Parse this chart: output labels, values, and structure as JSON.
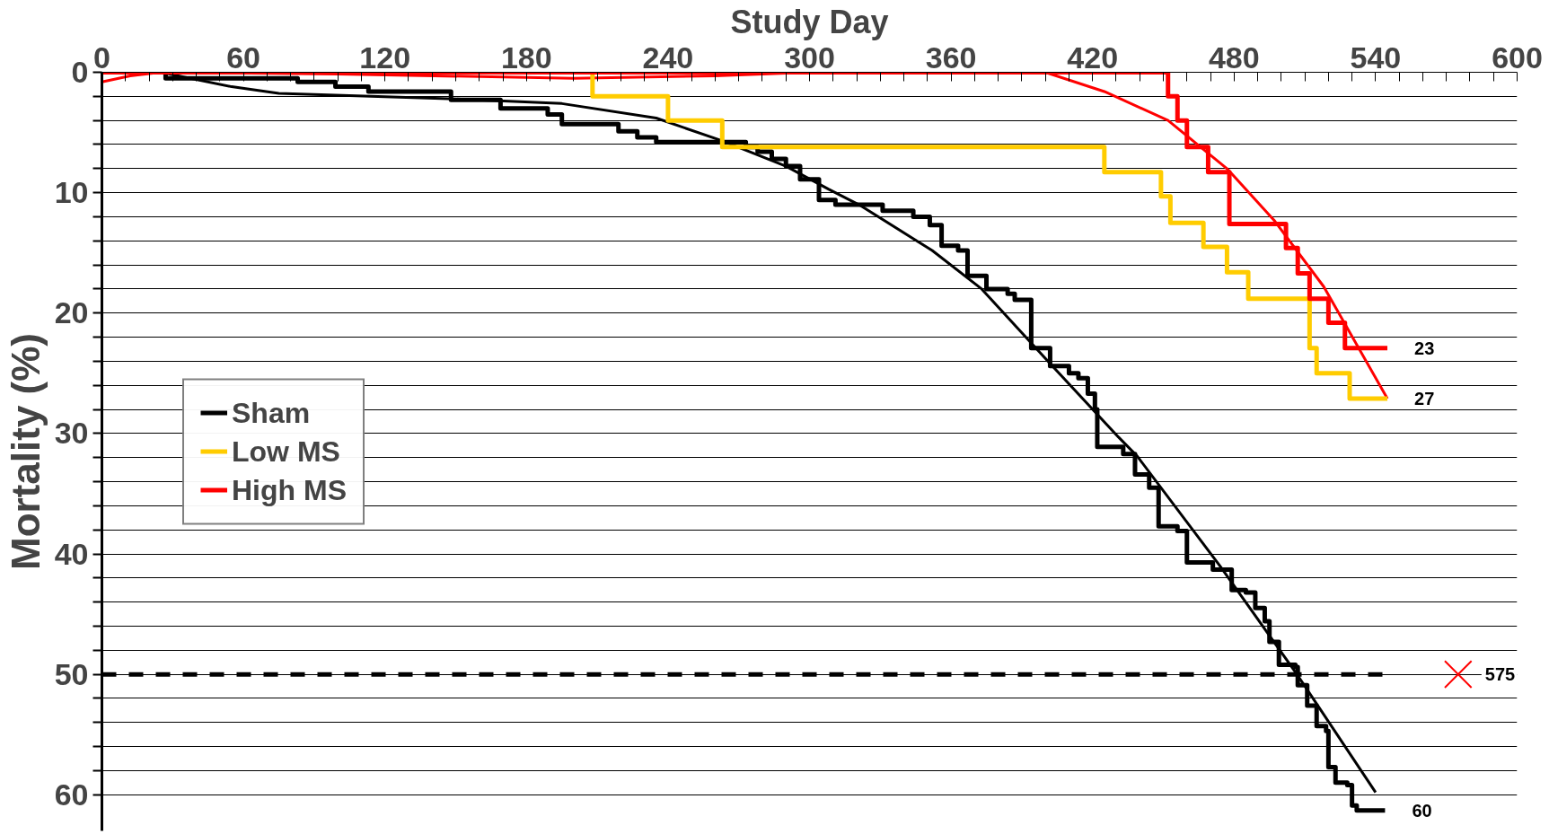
{
  "chart_data": {
    "type": "step",
    "xlabel": "Study Day",
    "ylabel": "Mortality (%)",
    "xlim": [
      0,
      600
    ],
    "xticks": [
      0,
      {
        "value": 10,
        "label": null
      },
      {
        "value": 20,
        "label": null
      },
      {
        "value": 30,
        "label": null
      },
      {
        "value": 40,
        "label": null
      },
      {
        "value": 50,
        "label": null
      },
      60,
      {
        "value": 70,
        "label": null
      },
      {
        "value": 80,
        "label": null
      },
      {
        "value": 90,
        "label": null
      },
      {
        "value": 100,
        "label": null
      },
      {
        "value": 110,
        "label": null
      },
      120,
      {
        "value": 130,
        "label": null
      },
      {
        "value": 140,
        "label": null
      },
      {
        "value": 150,
        "label": null
      },
      {
        "value": 160,
        "label": null
      },
      {
        "value": 170,
        "label": null
      },
      180,
      {
        "value": 190,
        "label": null
      },
      {
        "value": 200,
        "label": null
      },
      {
        "value": 210,
        "label": null
      },
      {
        "value": 220,
        "label": null
      },
      {
        "value": 230,
        "label": null
      },
      240,
      {
        "value": 250,
        "label": null
      },
      {
        "value": 260,
        "label": null
      },
      {
        "value": 270,
        "label": null
      },
      {
        "value": 280,
        "label": null
      },
      {
        "value": 290,
        "label": null
      },
      300,
      {
        "value": 310,
        "label": null
      },
      {
        "value": 320,
        "label": null
      },
      {
        "value": 330,
        "label": null
      },
      {
        "value": 340,
        "label": null
      },
      {
        "value": 350,
        "label": null
      },
      360,
      {
        "value": 370,
        "label": null
      },
      {
        "value": 380,
        "label": null
      },
      {
        "value": 390,
        "label": null
      },
      {
        "value": 400,
        "label": null
      },
      {
        "value": 410,
        "label": null
      },
      420,
      {
        "value": 430,
        "label": null
      },
      {
        "value": 440,
        "label": null
      },
      {
        "value": 450,
        "label": null
      },
      {
        "value": 460,
        "label": null
      },
      {
        "value": 470,
        "label": null
      },
      480,
      {
        "value": 490,
        "label": null
      },
      {
        "value": 500,
        "label": null
      },
      {
        "value": 510,
        "label": null
      },
      {
        "value": 520,
        "label": null
      },
      {
        "value": 530,
        "label": null
      },
      540,
      {
        "value": 550,
        "label": null
      },
      {
        "value": 560,
        "label": null
      },
      {
        "value": 570,
        "label": null
      },
      {
        "value": 580,
        "label": null
      },
      {
        "value": 590,
        "label": null
      },
      600
    ],
    "ylim": [
      63,
      0
    ],
    "yticks": [
      0,
      {
        "value": 2,
        "label": null
      },
      {
        "value": 4,
        "label": null
      },
      {
        "value": 6,
        "label": null
      },
      {
        "value": 8,
        "label": null
      },
      10,
      {
        "value": 12,
        "label": null
      },
      {
        "value": 14,
        "label": null
      },
      {
        "value": 16,
        "label": null
      },
      {
        "value": 18,
        "label": null
      },
      20,
      {
        "value": 22,
        "label": null
      },
      {
        "value": 24,
        "label": null
      },
      {
        "value": 26,
        "label": null
      },
      {
        "value": 28,
        "label": null
      },
      30,
      {
        "value": 32,
        "label": null
      },
      {
        "value": 34,
        "label": null
      },
      {
        "value": 36,
        "label": null
      },
      {
        "value": 38,
        "label": null
      },
      40,
      {
        "value": 42,
        "label": null
      },
      {
        "value": 44,
        "label": null
      },
      {
        "value": 46,
        "label": null
      },
      {
        "value": 48,
        "label": null
      },
      50,
      {
        "value": 52,
        "label": null
      },
      {
        "value": 54,
        "label": null
      },
      {
        "value": 56,
        "label": null
      },
      {
        "value": 58,
        "label": null
      },
      60
    ],
    "grid": "y",
    "legend": "left",
    "series": [
      {
        "name": "Sham",
        "color": "#000000",
        "x": [
          0,
          27,
          83,
          99,
          113,
          148,
          169,
          189,
          195,
          219,
          227,
          235,
          273,
          278,
          284,
          290,
          296,
          304,
          311,
          331,
          344,
          351,
          356,
          363,
          367,
          375,
          384,
          387,
          394,
          402,
          410,
          414,
          418,
          421,
          422,
          433,
          438,
          444,
          448,
          456,
          460,
          471,
          479,
          485,
          489,
          493,
          495,
          499,
          506,
          507,
          511,
          515,
          519,
          520,
          523,
          528,
          530,
          532,
          544
        ],
        "values": [
          0,
          0.5,
          0.8,
          1.2,
          1.6,
          2.3,
          3.0,
          3.5,
          4.3,
          4.9,
          5.4,
          5.8,
          6.2,
          6.6,
          7.2,
          7.8,
          8.9,
          10.6,
          11.0,
          11.5,
          12.0,
          12.7,
          14.4,
          14.8,
          16.9,
          18.0,
          18.4,
          18.9,
          22.9,
          24.4,
          25.0,
          25.4,
          26.7,
          28.0,
          31.1,
          31.7,
          33.4,
          34.5,
          37.7,
          38.1,
          40.7,
          41.3,
          43.0,
          43.2,
          44.5,
          45.6,
          47.3,
          49.2,
          49.4,
          50.9,
          52.6,
          54.3,
          54.7,
          57.7,
          59.0,
          59.2,
          60.9,
          61.3,
          61.3
        ]
      },
      {
        "name": "Low MS",
        "color": "#ffcc00",
        "x": [
          0,
          208,
          240,
          263,
          425,
          449,
          453,
          467,
          477,
          486,
          512,
          515,
          529,
          545
        ],
        "values": [
          0,
          2.0,
          4.0,
          6.2,
          8.3,
          10.3,
          12.5,
          14.5,
          16.6,
          18.8,
          22.9,
          25.0,
          27.1,
          27.1
        ]
      },
      {
        "name": "High MS",
        "color": "#ff0000",
        "x": [
          0,
          452,
          456,
          460,
          469,
          478,
          502,
          507,
          512,
          520,
          527,
          545
        ],
        "values": [
          0,
          2.0,
          4.0,
          6.2,
          8.3,
          12.6,
          14.6,
          16.7,
          18.8,
          20.8,
          22.9,
          22.9
        ]
      },
      {
        "color": "#000000",
        "type": "line",
        "x": [
          25,
          55,
          75,
          147,
          195,
          235,
          263,
          290,
          308,
          321,
          352,
          373,
          402,
          431,
          439,
          474,
          507,
          540
        ],
        "values": [
          0,
          1.2,
          1.75,
          2.2,
          2.6,
          3.8,
          5.7,
          7.8,
          9.7,
          11.0,
          14.8,
          18.0,
          24.2,
          30.3,
          31.9,
          41.0,
          50.1,
          59.8
        ]
      },
      {
        "color": "#ff0000",
        "type": "line",
        "x": [
          0,
          12,
          25,
          100,
          200,
          260,
          300,
          400,
          425,
          452,
          477,
          497,
          518,
          545
        ],
        "values": [
          0.8,
          0.3,
          0,
          0.15,
          0.5,
          0.3,
          0,
          0,
          1.6,
          4.0,
          8.0,
          12.3,
          17.8,
          27.1
        ]
      },
      {
        "color": "#ff0000",
        "type": "scatter",
        "marker": "cross",
        "x": [
          575
        ],
        "values": [
          50
        ]
      }
    ],
    "ref_lines": [
      {
        "axis": "y",
        "value": 50,
        "color": "#000000",
        "line_style": "dashed"
      }
    ],
    "annotations": [
      {
        "text": "23",
        "x": 545,
        "y": 22.9
      },
      {
        "text": "27",
        "x": 545,
        "y": 27.1
      },
      {
        "text": "60",
        "x": 544,
        "y": 61.3
      },
      {
        "text": "575",
        "x": 575,
        "y": 50
      }
    ]
  }
}
